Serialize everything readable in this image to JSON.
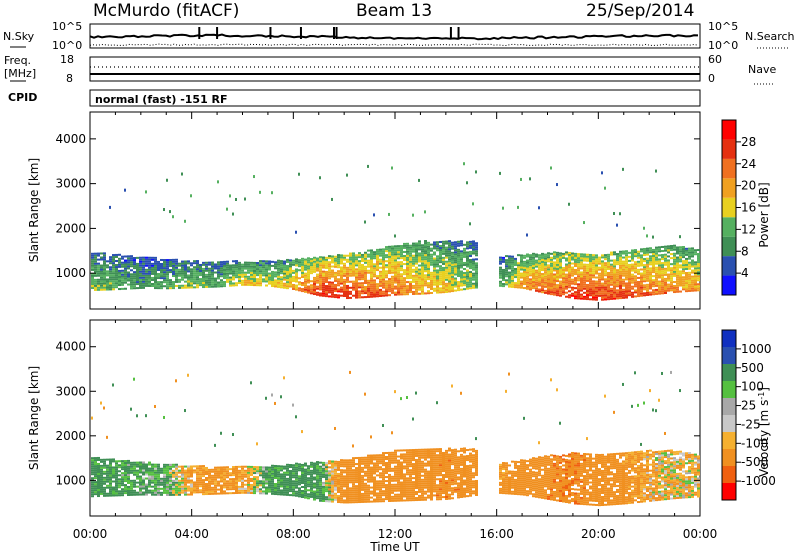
{
  "header": {
    "radar": "McMurdo (fitACF)",
    "beam": "Beam 13",
    "date": "25/Sep/2014"
  },
  "summary": {
    "nsky_label": "N.Sky",
    "nsky_ticks": [
      "10^5",
      "10^0"
    ],
    "nsearch_label": "N.Search",
    "nsearch_ticks": [
      "10^5",
      "10^0"
    ],
    "freq_label": "Freq.",
    "freq_unit": "[MHz]",
    "freq_ticks": [
      "18",
      "8"
    ],
    "nave_label": "Nave",
    "nave_ticks": [
      "60",
      "0"
    ],
    "cpid_label": "CPID",
    "cpid_text": "normal (fast) -151 RF"
  },
  "x_axis": {
    "label": "Time UT",
    "ticks": [
      "00:00",
      "04:00",
      "08:00",
      "12:00",
      "16:00",
      "20:00",
      "00:00"
    ]
  },
  "colors": {
    "power_scale": [
      "#1010ff",
      "#2a50b0",
      "#3f8f55",
      "#55b060",
      "#e8d020",
      "#f0a020",
      "#f07020",
      "#e53010",
      "#ff0000"
    ],
    "velocity_scale": [
      "#ff0000",
      "#f06010",
      "#f09020",
      "#f5b030",
      "#c8c8c8",
      "#a8a8a8",
      "#55c040",
      "#3f8f55",
      "#2a50b0",
      "#1030c0"
    ]
  },
  "chart_data": [
    {
      "type": "heatmap",
      "title": "",
      "xlabel": "Time UT",
      "ylabel": "Slant Range [km]",
      "xlim": [
        0,
        24
      ],
      "ylim": [
        200,
        4600
      ],
      "yticks": [
        "1000",
        "2000",
        "3000",
        "4000"
      ],
      "colorbar": {
        "label": "Power [dB]",
        "range": [
          0,
          32
        ],
        "ticks": [
          "28",
          "24",
          "20",
          "16",
          "12",
          "8",
          "4"
        ]
      },
      "main_band": {
        "x": [
          0,
          1,
          2,
          3,
          4,
          5,
          6,
          7,
          8,
          9,
          10,
          11,
          12,
          13,
          14,
          15,
          16,
          17,
          18,
          19,
          20,
          21,
          22,
          23,
          24
        ],
        "range_low": [
          600,
          620,
          650,
          640,
          660,
          680,
          720,
          700,
          620,
          480,
          420,
          450,
          500,
          520,
          560,
          650,
          700,
          650,
          520,
          420,
          380,
          430,
          500,
          560,
          600
        ],
        "range_high": [
          1450,
          1400,
          1350,
          1300,
          1250,
          1250,
          1250,
          1250,
          1300,
          1350,
          1400,
          1500,
          1600,
          1700,
          1700,
          1700,
          1350,
          1400,
          1450,
          1450,
          1400,
          1500,
          1550,
          1600,
          1500
        ],
        "peak_power_db": [
          14,
          12,
          10,
          12,
          14,
          12,
          18,
          16,
          20,
          28,
          28,
          26,
          24,
          20,
          18,
          14,
          10,
          22,
          24,
          28,
          28,
          26,
          24,
          22,
          20
        ]
      }
    },
    {
      "type": "heatmap",
      "title": "",
      "xlabel": "Time UT",
      "ylabel": "Slant Range [km]",
      "xlim": [
        0,
        24
      ],
      "ylim": [
        200,
        4600
      ],
      "yticks": [
        "1000",
        "2000",
        "3000",
        "4000"
      ],
      "colorbar": {
        "label": "Velocity [m s⁻¹]",
        "unit": "m s",
        "unit_exp": "-1",
        "range": [
          -1200,
          1200
        ],
        "ticks": [
          "1000",
          "500",
          "100",
          "25",
          "-25",
          "-100",
          "-500",
          "-1000"
        ]
      },
      "main_band": {
        "x": [
          0,
          1,
          2,
          3,
          4,
          5,
          6,
          7,
          8,
          9,
          10,
          11,
          12,
          13,
          14,
          15,
          16,
          17,
          18,
          19,
          20,
          21,
          22,
          23,
          24
        ],
        "range_low": [
          620,
          640,
          660,
          650,
          660,
          680,
          700,
          680,
          640,
          520,
          480,
          500,
          520,
          540,
          560,
          640,
          700,
          660,
          560,
          460,
          420,
          460,
          520,
          580,
          620
        ],
        "range_high": [
          1500,
          1450,
          1400,
          1350,
          1300,
          1300,
          1300,
          1300,
          1350,
          1400,
          1450,
          1550,
          1650,
          1700,
          1700,
          1700,
          1350,
          1450,
          1550,
          1600,
          1550,
          1600,
          1650,
          1650,
          1550
        ],
        "velocity_ms": [
          200,
          150,
          120,
          100,
          -150,
          -200,
          -120,
          150,
          200,
          150,
          -300,
          -250,
          -300,
          -350,
          -400,
          -350,
          -150,
          -300,
          -400,
          -450,
          -300,
          -200,
          -100,
          -50,
          -80
        ]
      }
    }
  ]
}
